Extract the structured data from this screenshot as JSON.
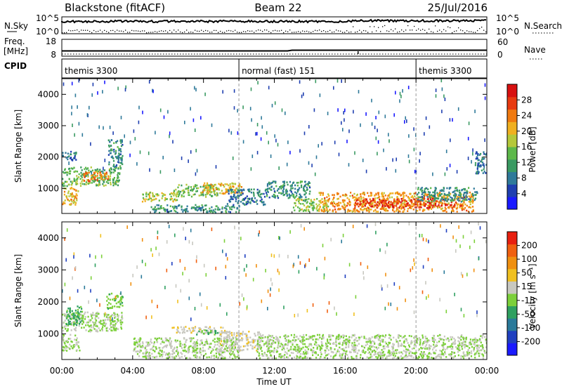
{
  "header": {
    "station": "Blackstone (fitACF)",
    "beam": "Beam 22",
    "date": "25/Jul/2016"
  },
  "nsky": {
    "label": "N.Sky",
    "ticks": [
      "10^5",
      "10^0"
    ],
    "right_label": "N.Search",
    "right_ticks": [
      "10^5",
      "10^0"
    ]
  },
  "freq": {
    "label_line1": "Freq.",
    "label_line2": "[MHz]",
    "ticks": [
      "18",
      "8"
    ],
    "right_label": "Nave",
    "right_ticks": [
      "60",
      "0"
    ]
  },
  "cpid": {
    "label": "CPID",
    "modes": [
      {
        "name": "themis 3300",
        "start_hr": 0.0,
        "end_hr": 10.0
      },
      {
        "name": "normal (fast) 151",
        "start_hr": 10.0,
        "end_hr": 20.0
      },
      {
        "name": "themis 3300",
        "start_hr": 20.0,
        "end_hr": 24.0
      }
    ]
  },
  "time_ticks": [
    "00:00",
    "04:00",
    "08:00",
    "12:00",
    "16:00",
    "20:00",
    "00:00"
  ],
  "xlabel": "Time UT",
  "range_ticks": [
    "1000",
    "2000",
    "3000",
    "4000"
  ],
  "ylabel": "Slant Range [km]",
  "power_colorbar": {
    "label": "Power [dB]",
    "ticks": [
      "4",
      "8",
      "12",
      "16",
      "20",
      "24",
      "28"
    ],
    "colors": [
      "#1a1aff",
      "#1f3fb0",
      "#2f7a9a",
      "#3a9a62",
      "#5db84a",
      "#b5c83a",
      "#f0b020",
      "#f07a10",
      "#e83a10",
      "#d81010"
    ]
  },
  "velocity_colorbar": {
    "label": "Velocity [m s⁻¹]",
    "ticks": [
      "200",
      "100",
      "50",
      "15",
      "-15",
      "-50",
      "-100",
      "-200"
    ],
    "colors": [
      "#1a1aff",
      "#2040c0",
      "#2a7a9a",
      "#2fa060",
      "#7cd03a",
      "#c8c8c0",
      "#f0c020",
      "#f09010",
      "#f06010",
      "#e82010"
    ]
  },
  "chart_data": [
    {
      "type": "heatmap",
      "panel": "power",
      "title": "",
      "xlabel": "Time UT",
      "ylabel": "Slant Range [km]",
      "xlim": [
        0,
        24
      ],
      "ylim": [
        200,
        4500
      ],
      "colorbar": {
        "label": "Power [dB]",
        "range": [
          0,
          32
        ]
      },
      "regions": [
        {
          "t0": 0.0,
          "t1": 3.3,
          "r0": 1100,
          "r1": 1700,
          "value": 14
        },
        {
          "t0": 1.2,
          "t1": 2.6,
          "r0": 1250,
          "r1": 1550,
          "value": 24
        },
        {
          "t0": 2.6,
          "t1": 3.4,
          "r0": 1700,
          "r1": 2600,
          "value": 10
        },
        {
          "t0": 0.0,
          "t1": 0.9,
          "r0": 500,
          "r1": 1050,
          "value": 20
        },
        {
          "t0": 0.0,
          "t1": 0.8,
          "r0": 1900,
          "r1": 2200,
          "value": 8
        },
        {
          "t0": 4.5,
          "t1": 6.5,
          "r0": 600,
          "r1": 900,
          "value": 18
        },
        {
          "t0": 6.3,
          "t1": 8.8,
          "r0": 750,
          "r1": 1150,
          "value": 14
        },
        {
          "t0": 7.8,
          "t1": 10.2,
          "r0": 850,
          "r1": 1200,
          "value": 20
        },
        {
          "t0": 5.0,
          "t1": 10.0,
          "r0": 250,
          "r1": 500,
          "value": 10
        },
        {
          "t0": 9.3,
          "t1": 11.5,
          "r0": 500,
          "r1": 1000,
          "value": 8
        },
        {
          "t0": 11.5,
          "t1": 14.0,
          "r0": 700,
          "r1": 1250,
          "value": 10
        },
        {
          "t0": 13.0,
          "t1": 15.0,
          "r0": 300,
          "r1": 700,
          "value": 16
        },
        {
          "t0": 14.5,
          "t1": 23.2,
          "r0": 280,
          "r1": 900,
          "value": 22
        },
        {
          "t0": 16.5,
          "t1": 22.5,
          "r0": 400,
          "r1": 700,
          "value": 28
        },
        {
          "t0": 20.0,
          "t1": 23.5,
          "r0": 600,
          "r1": 1050,
          "value": 10
        },
        {
          "t0": 23.3,
          "t1": 24.0,
          "r0": 1500,
          "r1": 2200,
          "value": 8
        }
      ]
    },
    {
      "type": "heatmap",
      "panel": "velocity",
      "title": "",
      "xlabel": "Time UT",
      "ylabel": "Slant Range [km]",
      "xlim": [
        0,
        24
      ],
      "ylim": [
        200,
        4500
      ],
      "colorbar": {
        "label": "Velocity [m s⁻¹]",
        "range": [
          -250,
          250
        ]
      },
      "regions": [
        {
          "t0": 0.0,
          "t1": 3.4,
          "r0": 1100,
          "r1": 1700,
          "value": 0
        },
        {
          "t0": 0.0,
          "t1": 1.0,
          "r0": 500,
          "r1": 1000,
          "value": 0
        },
        {
          "t0": 0.2,
          "t1": 1.2,
          "r0": 1300,
          "r1": 1900,
          "value": -60
        },
        {
          "t0": 2.5,
          "t1": 3.4,
          "r0": 1800,
          "r1": 2300,
          "value": -30
        },
        {
          "t0": 6.2,
          "t1": 9.2,
          "r0": 1050,
          "r1": 1250,
          "value": 30
        },
        {
          "t0": 7.5,
          "t1": 8.8,
          "r0": 1000,
          "r1": 1150,
          "value": -60
        },
        {
          "t0": 8.8,
          "t1": 11.2,
          "r0": 500,
          "r1": 1100,
          "value": 30
        },
        {
          "t0": 4.0,
          "t1": 10.0,
          "r0": 250,
          "r1": 900,
          "value": 0
        },
        {
          "t0": 11.0,
          "t1": 24.0,
          "r0": 250,
          "r1": 1000,
          "value": 0
        }
      ]
    }
  ]
}
